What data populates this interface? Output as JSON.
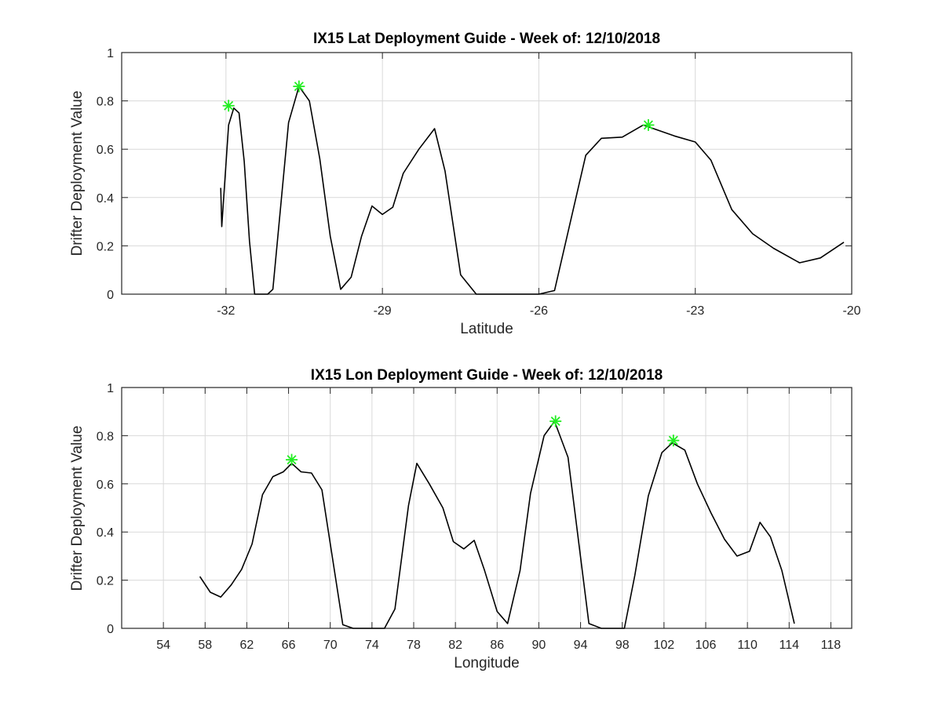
{
  "chart_data": [
    {
      "type": "line",
      "title": "IX15 Lat Deployment Guide - Week of: 12/10/2018",
      "xlabel": "Latitude",
      "ylabel": "Drifter Deployment Value",
      "xlim": [
        -34,
        -20
      ],
      "ylim": [
        0,
        1
      ],
      "xticks": [
        -32,
        -29,
        -26,
        -23,
        -20
      ],
      "yticks": [
        0,
        0.2,
        0.4,
        0.6,
        0.8,
        1
      ],
      "yticklabels": [
        "0",
        "0.2",
        "0.4",
        "0.6",
        "0.8",
        "1"
      ],
      "grid": true,
      "series": [
        {
          "color": "#000000",
          "x": [
            -32.1,
            -32.08,
            -31.95,
            -31.85,
            -31.75,
            -31.65,
            -31.55,
            -31.45,
            -31.2,
            -31.1,
            -30.8,
            -30.6,
            -30.4,
            -30.2,
            -30.0,
            -29.8,
            -29.6,
            -29.4,
            -29.2,
            -29.0,
            -28.8,
            -28.6,
            -28.3,
            -28.0,
            -27.8,
            -27.5,
            -27.2,
            -26.9,
            -26.0,
            -25.7,
            -25.1,
            -24.8,
            -24.4,
            -24.0,
            -23.8,
            -23.4,
            -23.0,
            -22.7,
            -22.3,
            -21.9,
            -21.5,
            -21.0,
            -20.6,
            -20.15
          ],
          "y": [
            0.44,
            0.28,
            0.7,
            0.77,
            0.75,
            0.55,
            0.22,
            0.0,
            0.0,
            0.02,
            0.71,
            0.86,
            0.8,
            0.56,
            0.24,
            0.02,
            0.07,
            0.24,
            0.365,
            0.33,
            0.36,
            0.5,
            0.6,
            0.685,
            0.51,
            0.08,
            0.0,
            0.0,
            0.0,
            0.015,
            0.575,
            0.645,
            0.65,
            0.7,
            0.685,
            0.655,
            0.63,
            0.555,
            0.35,
            0.25,
            0.19,
            0.13,
            0.15,
            0.215
          ]
        }
      ],
      "markers": {
        "color": "#22ee22",
        "symbol": "asterisk",
        "x": [
          -31.95,
          -30.6,
          -23.9
        ],
        "y": [
          0.78,
          0.86,
          0.7
        ]
      }
    },
    {
      "type": "line",
      "title": "IX15 Lon Deployment Guide - Week of: 12/10/2018",
      "xlabel": "Longitude",
      "ylabel": "Drifter Deployment Value",
      "xlim": [
        50,
        120
      ],
      "ylim": [
        0,
        1
      ],
      "xticks": [
        54,
        58,
        62,
        66,
        70,
        74,
        78,
        82,
        86,
        90,
        94,
        98,
        102,
        106,
        110,
        114,
        118
      ],
      "yticks": [
        0,
        0.2,
        0.4,
        0.6,
        0.8,
        1
      ],
      "yticklabels": [
        "0",
        "0.2",
        "0.4",
        "0.6",
        "0.8",
        "1"
      ],
      "grid": true,
      "series": [
        {
          "color": "#000000",
          "x": [
            57.5,
            58.5,
            59.5,
            60.5,
            61.5,
            62.5,
            63.5,
            64.5,
            65.5,
            66.3,
            67.2,
            68.2,
            69.2,
            71.2,
            72.2,
            73.2,
            74.2,
            75.2,
            76.2,
            77.5,
            78.3,
            79.5,
            80.8,
            81.8,
            82.8,
            83.8,
            84.8,
            86.0,
            87.0,
            88.2,
            89.2,
            90.5,
            91.5,
            92.8,
            94.8,
            96.0,
            97.2,
            98.2,
            99.2,
            100.5,
            101.8,
            102.8,
            104.0,
            105.2,
            106.5,
            107.8,
            109.0,
            110.2,
            111.2,
            112.2,
            113.3,
            114.5
          ],
          "y": [
            0.215,
            0.15,
            0.13,
            0.18,
            0.245,
            0.35,
            0.555,
            0.63,
            0.65,
            0.685,
            0.65,
            0.645,
            0.575,
            0.015,
            0.0,
            0.0,
            0.0,
            0.0,
            0.08,
            0.51,
            0.685,
            0.6,
            0.5,
            0.36,
            0.33,
            0.365,
            0.24,
            0.07,
            0.02,
            0.24,
            0.56,
            0.8,
            0.86,
            0.71,
            0.02,
            0.0,
            0.0,
            0.0,
            0.22,
            0.55,
            0.73,
            0.77,
            0.74,
            0.6,
            0.48,
            0.37,
            0.3,
            0.32,
            0.44,
            0.38,
            0.24,
            0.02
          ]
        }
      ],
      "markers": {
        "color": "#22ee22",
        "symbol": "asterisk",
        "x": [
          66.3,
          91.6,
          102.9
        ],
        "y": [
          0.7,
          0.86,
          0.78
        ]
      }
    }
  ]
}
